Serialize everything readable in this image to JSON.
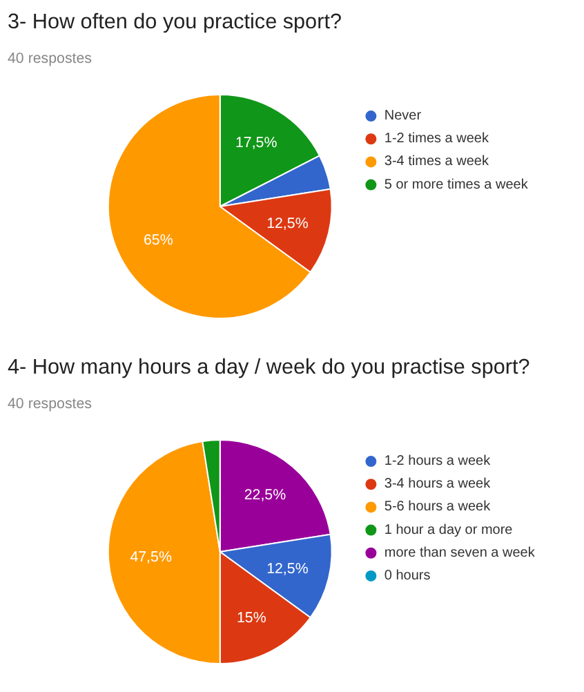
{
  "chart_data": [
    {
      "type": "pie",
      "title": "3- How often do you practice sport?",
      "subtitle": "40 respostes",
      "categories": [
        "Never",
        "1-2 times a week",
        "3-4 times a week",
        "5 or more times a week"
      ],
      "values": [
        5,
        12.5,
        65,
        17.5
      ],
      "colors": [
        "#3366cc",
        "#dc3912",
        "#ff9900",
        "#109618"
      ],
      "value_labels": [
        null,
        "12,5%",
        "65%",
        "17,5%"
      ],
      "legend": "right"
    },
    {
      "type": "pie",
      "title": "4- How many hours a day / week do you practise sport?",
      "subtitle": "40 respostes",
      "categories": [
        "1-2 hours a week",
        "3-4 hours a week",
        "5-6 hours a week",
        "1 hour a day or more",
        "more than seven a week",
        "0 hours"
      ],
      "values": [
        12.5,
        15,
        47.5,
        2.5,
        22.5,
        0
      ],
      "colors": [
        "#3366cc",
        "#dc3912",
        "#ff9900",
        "#109618",
        "#990099",
        "#0099c6"
      ],
      "value_labels": [
        "12,5%",
        "15%",
        "47,5%",
        null,
        "22,5%",
        null
      ],
      "legend": "right"
    }
  ]
}
